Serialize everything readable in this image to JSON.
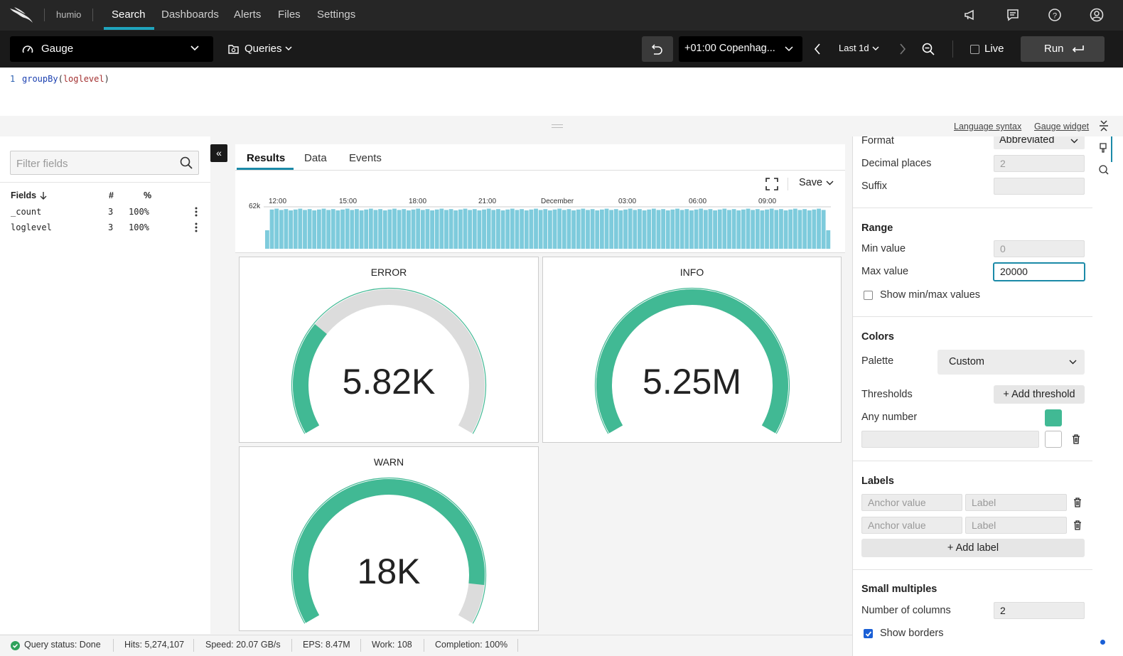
{
  "topnav": {
    "brand": "humio",
    "items": [
      "Search",
      "Dashboards",
      "Alerts",
      "Files",
      "Settings"
    ]
  },
  "toolbar": {
    "widget_type": "Gauge",
    "queries_label": "Queries",
    "timezone": "+01:00 Copenhag...",
    "time_range": "Last 1d",
    "live_label": "Live",
    "run_label": "Run"
  },
  "editor": {
    "line_number": "1",
    "func": "groupBy",
    "open_paren": "(",
    "arg": "loglevel",
    "close_paren": ")"
  },
  "links": {
    "language_syntax": "Language syntax",
    "gauge_widget": "Gauge widget"
  },
  "fields_panel": {
    "filter_placeholder": "Filter fields",
    "headers": {
      "fields": "Fields",
      "count": "#",
      "percent": "%"
    },
    "rows": [
      {
        "name": "_count",
        "count": "3",
        "percent": "100%"
      },
      {
        "name": "loglevel",
        "count": "3",
        "percent": "100%"
      }
    ]
  },
  "results_tabs": [
    "Results",
    "Data",
    "Events"
  ],
  "histogram": {
    "save_label": "Save",
    "y_max_label": "62k",
    "x_labels": [
      "12:00",
      "15:00",
      "18:00",
      "21:00",
      "December",
      "03:00",
      "06:00",
      "09:00"
    ],
    "bar_color": "#7ecbdc"
  },
  "gauges": [
    {
      "title": "ERROR",
      "value_label": "5.82K",
      "fraction": 0.29
    },
    {
      "title": "INFO",
      "value_label": "5.25M",
      "fraction": 1.0
    },
    {
      "title": "WARN",
      "value_label": "18K",
      "fraction": 0.9
    }
  ],
  "colors": {
    "accent": "#41b994",
    "track": "#dcdcdc",
    "tab_underline": "#1b8aa8",
    "nav_underline": "#1fa4bd"
  },
  "settings": {
    "format_label": "Format",
    "format_value": "Abbreviated",
    "decimal_places_label": "Decimal places",
    "decimal_places_value": "2",
    "suffix_label": "Suffix",
    "range_heading": "Range",
    "min_value_label": "Min value",
    "min_value_placeholder": "0",
    "max_value_label": "Max value",
    "max_value_value": "20000",
    "show_minmax_label": "Show min/max values",
    "colors_heading": "Colors",
    "palette_label": "Palette",
    "palette_value": "Custom",
    "thresholds_label": "Thresholds",
    "add_threshold_label": "Add threshold",
    "any_number_label": "Any number",
    "labels_heading": "Labels",
    "anchor_placeholder": "Anchor value",
    "label_placeholder": "Label",
    "add_label_label": "Add label",
    "small_multiples_heading": "Small multiples",
    "num_columns_label": "Number of columns",
    "num_columns_value": "2",
    "show_borders_label": "Show borders"
  },
  "status": {
    "query_status": "Query status: Done",
    "hits": "Hits: 5,274,107",
    "speed": "Speed: 20.07 GB/s",
    "eps": "EPS: 8.47M",
    "work": "Work: 108",
    "completion": "Completion: 100%"
  }
}
